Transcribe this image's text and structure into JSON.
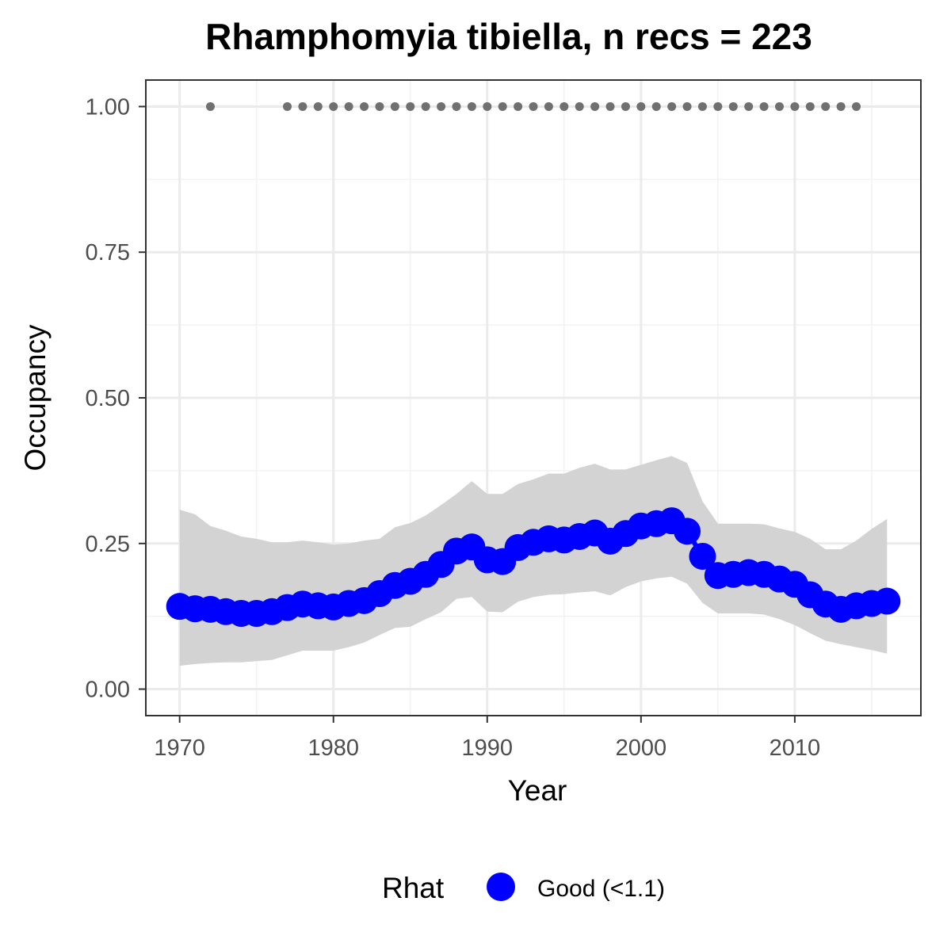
{
  "chart_data": {
    "type": "line",
    "title": "Rhamphomyia tibiella, n recs = 223",
    "xlabel": "Year",
    "ylabel": "Occupancy",
    "xlim": [
      1967.8,
      2018.2
    ],
    "ylim": [
      -0.0455,
      1.0455
    ],
    "x_ticks": [
      1970,
      1980,
      1990,
      2000,
      2010
    ],
    "x_tick_labels": [
      "1970",
      "1980",
      "1990",
      "2000",
      "2010"
    ],
    "y_ticks": [
      0,
      0.25,
      0.5,
      0.75,
      1.0
    ],
    "y_tick_labels": [
      "0.00",
      "0.25",
      "0.50",
      "0.75",
      "1.00"
    ],
    "grid": true,
    "legend": {
      "title": "Rhat",
      "position": "bottom",
      "entries": [
        "Good (<1.1)"
      ]
    },
    "colors": {
      "series": "#0000ff",
      "ribbon": "#d3d3d3",
      "records": "#707070"
    },
    "x": [
      1970,
      1971,
      1972,
      1973,
      1974,
      1975,
      1976,
      1977,
      1978,
      1979,
      1980,
      1981,
      1982,
      1983,
      1984,
      1985,
      1986,
      1987,
      1988,
      1989,
      1990,
      1991,
      1992,
      1993,
      1994,
      1995,
      1996,
      1997,
      1998,
      1999,
      2000,
      2001,
      2002,
      2003,
      2004,
      2005,
      2006,
      2007,
      2008,
      2009,
      2010,
      2011,
      2012,
      2013,
      2014,
      2015,
      2016
    ],
    "series": [
      {
        "name": "Good (<1.1)",
        "values": [
          0.142,
          0.138,
          0.137,
          0.133,
          0.13,
          0.13,
          0.133,
          0.14,
          0.146,
          0.143,
          0.141,
          0.147,
          0.152,
          0.164,
          0.178,
          0.185,
          0.197,
          0.214,
          0.237,
          0.244,
          0.222,
          0.219,
          0.243,
          0.252,
          0.258,
          0.256,
          0.262,
          0.268,
          0.254,
          0.267,
          0.28,
          0.284,
          0.289,
          0.271,
          0.228,
          0.195,
          0.197,
          0.2,
          0.197,
          0.189,
          0.18,
          0.162,
          0.146,
          0.137,
          0.143,
          0.147,
          0.151
        ]
      }
    ],
    "ribbon": {
      "lower": [
        0.04,
        0.043,
        0.045,
        0.046,
        0.046,
        0.048,
        0.05,
        0.058,
        0.066,
        0.066,
        0.066,
        0.072,
        0.08,
        0.093,
        0.105,
        0.107,
        0.12,
        0.132,
        0.155,
        0.158,
        0.133,
        0.132,
        0.15,
        0.158,
        0.162,
        0.163,
        0.166,
        0.168,
        0.161,
        0.175,
        0.185,
        0.19,
        0.193,
        0.181,
        0.148,
        0.13,
        0.13,
        0.13,
        0.128,
        0.12,
        0.11,
        0.096,
        0.083,
        0.077,
        0.072,
        0.067,
        0.061
      ],
      "upper": [
        0.308,
        0.3,
        0.28,
        0.272,
        0.262,
        0.258,
        0.252,
        0.252,
        0.255,
        0.252,
        0.248,
        0.25,
        0.255,
        0.258,
        0.278,
        0.285,
        0.298,
        0.316,
        0.335,
        0.357,
        0.335,
        0.335,
        0.352,
        0.36,
        0.37,
        0.37,
        0.38,
        0.387,
        0.377,
        0.377,
        0.385,
        0.393,
        0.4,
        0.388,
        0.322,
        0.284,
        0.284,
        0.284,
        0.283,
        0.276,
        0.27,
        0.258,
        0.24,
        0.24,
        0.255,
        0.275,
        0.292
      ]
    },
    "records": {
      "value": 1.0,
      "years": [
        1972,
        1977,
        1978,
        1979,
        1980,
        1981,
        1982,
        1983,
        1984,
        1985,
        1986,
        1987,
        1988,
        1989,
        1990,
        1991,
        1992,
        1993,
        1994,
        1995,
        1996,
        1997,
        1998,
        1999,
        2000,
        2001,
        2002,
        2003,
        2004,
        2005,
        2006,
        2007,
        2008,
        2009,
        2010,
        2011,
        2012,
        2013,
        2014
      ]
    }
  }
}
